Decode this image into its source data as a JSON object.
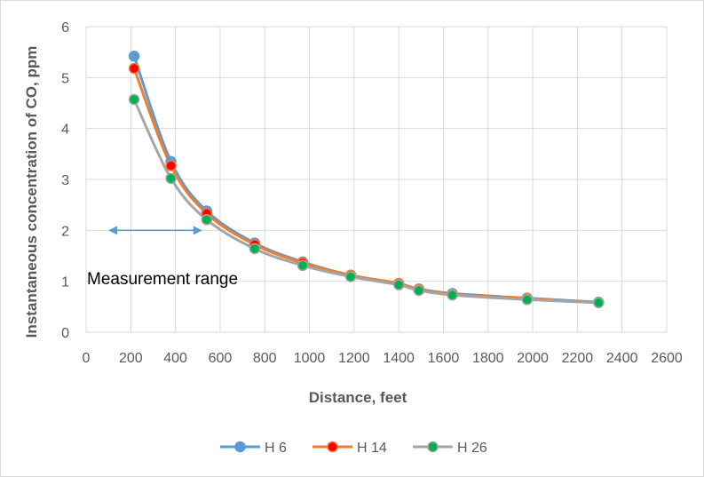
{
  "chart_data": {
    "type": "line",
    "title": "",
    "xlabel": "Distance, feet",
    "ylabel": "Instantaneous concentration of CO, ppm",
    "xlim": [
      0,
      2600
    ],
    "ylim": [
      0,
      6
    ],
    "x_ticks": [
      "0",
      "200",
      "400",
      "600",
      "800",
      "1000",
      "1200",
      "1400",
      "1600",
      "1800",
      "2000",
      "2200",
      "2400",
      "2600"
    ],
    "y_ticks": [
      "0",
      "1",
      "2",
      "3",
      "4",
      "5",
      "6"
    ],
    "grid": "vertical and horizontal",
    "legend_position": "bottom",
    "series": [
      {
        "name": "H 6",
        "color": "#5B9BD5",
        "marker_color": "#5B9BD5",
        "points": [
          [
            215,
            5.42
          ],
          [
            380,
            3.35
          ],
          [
            540,
            2.38
          ],
          [
            755,
            1.75
          ],
          [
            970,
            1.38
          ],
          [
            1185,
            1.12
          ],
          [
            1400,
            0.95
          ],
          [
            1490,
            0.85
          ],
          [
            1640,
            0.76
          ],
          [
            1975,
            0.67
          ],
          [
            2295,
            0.59
          ]
        ]
      },
      {
        "name": "H 14",
        "color": "#ED7D31",
        "marker_color": "#FF0000",
        "points": [
          [
            215,
            5.18
          ],
          [
            380,
            3.27
          ],
          [
            540,
            2.33
          ],
          [
            755,
            1.72
          ],
          [
            970,
            1.36
          ],
          [
            1185,
            1.12
          ],
          [
            1400,
            0.96
          ],
          [
            1490,
            0.84
          ],
          [
            1640,
            0.75
          ],
          [
            1975,
            0.66
          ],
          [
            2295,
            0.58
          ]
        ]
      },
      {
        "name": "H 26",
        "color": "#A5A5A5",
        "marker_color": "#00B050",
        "points": [
          [
            215,
            4.57
          ],
          [
            380,
            3.02
          ],
          [
            540,
            2.21
          ],
          [
            755,
            1.64
          ],
          [
            970,
            1.31
          ],
          [
            1185,
            1.09
          ],
          [
            1400,
            0.93
          ],
          [
            1490,
            0.82
          ],
          [
            1640,
            0.73
          ],
          [
            1975,
            0.64
          ],
          [
            2295,
            0.58
          ]
        ]
      }
    ],
    "annotation": {
      "text": "Measurement range",
      "arrow_x": [
        100,
        520
      ],
      "arrow_y": 2.0,
      "arrow_color": "#5B9BD5"
    }
  }
}
